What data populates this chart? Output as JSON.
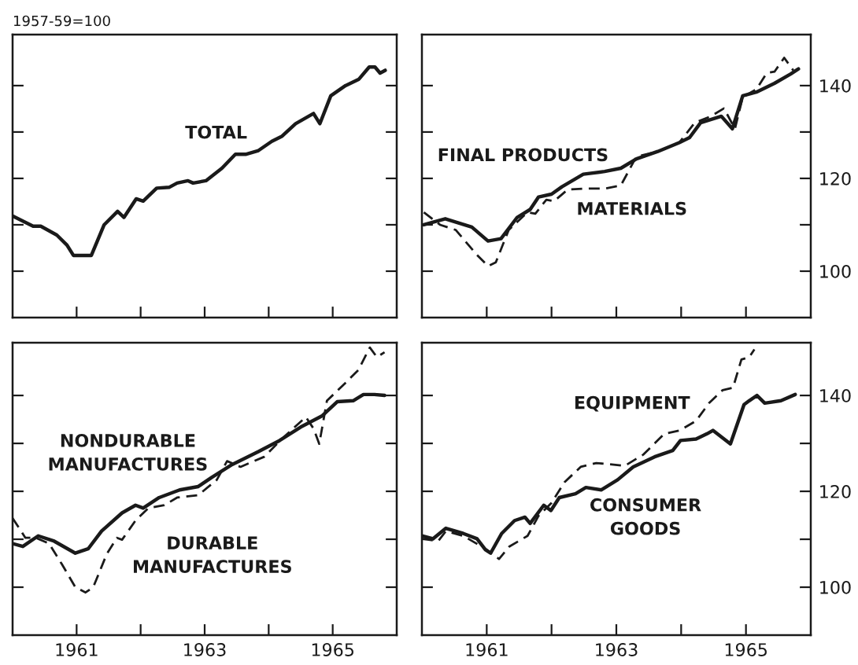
{
  "chart_data": [
    {
      "type": "line",
      "annotations": [
        "1957-59=100"
      ],
      "xlim": [
        1960,
        1966
      ],
      "ylim": [
        90,
        151
      ],
      "tick_labels": false,
      "xticks": [
        {
          "value": 1961,
          "label": null
        },
        {
          "value": 1962,
          "label": null
        },
        {
          "value": 1963,
          "label": null
        },
        {
          "value": 1964,
          "label": null
        },
        {
          "value": 1965,
          "label": null
        }
      ],
      "yticks": [
        {
          "value": 100,
          "label": null
        },
        {
          "value": 110,
          "label": null
        },
        {
          "value": 120,
          "label": null
        },
        {
          "value": 130,
          "label": null
        },
        {
          "value": 140,
          "label": null
        }
      ],
      "series": [
        {
          "name": "TOTAL",
          "color": "#1a1a1a",
          "line_style": "solid",
          "x": [
            1960.0,
            1960.32,
            1960.44,
            1960.69,
            1960.85,
            1960.95,
            1961.23,
            1961.43,
            1961.64,
            1961.74,
            1961.93,
            1962.04,
            1962.25,
            1962.45,
            1962.57,
            1962.74,
            1962.82,
            1963.02,
            1963.27,
            1963.48,
            1963.64,
            1963.84,
            1964.05,
            1964.21,
            1964.42,
            1964.7,
            1964.8,
            1964.97,
            1965.2,
            1965.41,
            1965.57,
            1965.66,
            1965.74,
            1965.82
          ],
          "values": [
            111.9,
            109.7,
            109.7,
            107.8,
            105.6,
            103.4,
            103.4,
            110,
            112.9,
            111.6,
            115.6,
            115.1,
            117.9,
            118.1,
            119,
            119.5,
            119,
            119.5,
            122.2,
            125.2,
            125.2,
            126,
            128,
            129.1,
            131.8,
            134,
            131.8,
            137.8,
            140,
            141.4,
            144,
            144,
            142.7,
            143.3
          ]
        }
      ]
    },
    {
      "type": "line",
      "xlim": [
        1960,
        1966
      ],
      "ylim": [
        90,
        151
      ],
      "tick_labels": "y",
      "xticks": [
        {
          "value": 1961,
          "label": null
        },
        {
          "value": 1962,
          "label": null
        },
        {
          "value": 1963,
          "label": null
        },
        {
          "value": 1964,
          "label": null
        },
        {
          "value": 1965,
          "label": null
        }
      ],
      "yticks": [
        100,
        {
          "value": 110,
          "label": null
        },
        120,
        {
          "value": 130,
          "label": null
        },
        140
      ],
      "series": [
        {
          "name": "FINAL PRODUCTS",
          "color": "#1a1a1a",
          "line_style": "solid",
          "x": [
            1960.03,
            1960.36,
            1960.77,
            1961.02,
            1961.22,
            1961.47,
            1961.67,
            1961.8,
            1962.0,
            1962.16,
            1962.49,
            1962.82,
            1963.07,
            1963.31,
            1963.64,
            1963.97,
            1964.13,
            1964.3,
            1964.62,
            1964.79,
            1964.95,
            1965.16,
            1965.44,
            1965.69,
            1965.81
          ],
          "values": [
            110,
            111.3,
            109.5,
            106.5,
            107,
            111.6,
            113.3,
            116,
            116.6,
            118.2,
            120.9,
            121.5,
            122.2,
            124.2,
            125.8,
            127.7,
            128.8,
            132,
            133.4,
            130.7,
            137.8,
            138.6,
            140.5,
            142.5,
            143.6
          ]
        },
        {
          "name": "MATERIALS",
          "color": "#1a1a1a",
          "line_style": "dashed",
          "x": [
            1960.03,
            1960.28,
            1960.52,
            1960.85,
            1961.02,
            1961.14,
            1961.34,
            1961.63,
            1961.75,
            1961.92,
            1962.04,
            1962.25,
            1962.49,
            1962.82,
            1963.07,
            1963.31,
            1963.64,
            1963.97,
            1964.21,
            1964.46,
            1964.66,
            1964.83,
            1964.95,
            1965.16,
            1965.32,
            1965.44,
            1965.59,
            1965.73
          ],
          "values": [
            112.7,
            110,
            108.9,
            103.5,
            101.1,
            101.9,
            108.9,
            112.7,
            112.4,
            115.4,
            115.1,
            117.6,
            117.8,
            117.8,
            118.5,
            124.7,
            125.8,
            127.7,
            132,
            133.4,
            135.1,
            130.7,
            137.5,
            139.2,
            142.7,
            143,
            146,
            143.3
          ]
        }
      ]
    },
    {
      "type": "line",
      "xlim": [
        1960,
        1966
      ],
      "ylim": [
        90,
        151
      ],
      "tick_labels": "x",
      "xticks": [
        {
          "value": 1961,
          "label": "1961"
        },
        {
          "value": 1962,
          "label": null
        },
        {
          "value": 1963,
          "label": "1963"
        },
        {
          "value": 1964,
          "label": null
        },
        {
          "value": 1965,
          "label": "1965"
        }
      ],
      "yticks": [
        {
          "value": 100,
          "label": null
        },
        {
          "value": 110,
          "label": null
        },
        {
          "value": 120,
          "label": null
        },
        {
          "value": 130,
          "label": null
        },
        {
          "value": 140,
          "label": null
        }
      ],
      "series": [
        {
          "name": "NONDURABLE\nMANUFACTURES",
          "color": "#1a1a1a",
          "line_style": "solid",
          "x": [
            1960.0,
            1960.16,
            1960.4,
            1960.65,
            1960.98,
            1961.18,
            1961.39,
            1961.71,
            1961.92,
            1962.04,
            1962.29,
            1962.61,
            1962.9,
            1963.11,
            1963.43,
            1963.84,
            1964.17,
            1964.5,
            1964.83,
            1965.07,
            1965.32,
            1965.48,
            1965.65,
            1965.81
          ],
          "values": [
            109.1,
            108.5,
            110.7,
            109.6,
            107.1,
            108,
            111.7,
            115.5,
            117.1,
            116.5,
            118.7,
            120.3,
            121,
            122.9,
            125.6,
            128.3,
            130.6,
            133.4,
            135.7,
            138.7,
            138.9,
            140.2,
            140.2,
            140
          ]
        },
        {
          "name": "DURABLE\nMANUFACTURES",
          "color": "#1a1a1a",
          "line_style": "dashed",
          "x": [
            1960.0,
            1960.2,
            1960.36,
            1960.57,
            1960.77,
            1960.98,
            1961.14,
            1961.26,
            1961.47,
            1961.63,
            1961.71,
            1961.92,
            1962.12,
            1962.37,
            1962.57,
            1962.9,
            1963.19,
            1963.35,
            1963.56,
            1963.93,
            1964.25,
            1964.58,
            1964.7,
            1964.79,
            1964.91,
            1965.16,
            1965.4,
            1965.58,
            1965.69,
            1965.81
          ],
          "values": [
            114.4,
            110.3,
            110.3,
            109.1,
            104.8,
            100,
            98.9,
            100,
            106.9,
            110.3,
            109.9,
            113.9,
            116.5,
            117.1,
            118.7,
            119.2,
            122.4,
            126.3,
            125.1,
            127.2,
            131.5,
            135.5,
            133.1,
            129.9,
            138.9,
            142.1,
            145.3,
            150,
            148,
            149
          ]
        }
      ]
    },
    {
      "type": "line",
      "xlim": [
        1960,
        1966
      ],
      "ylim": [
        90,
        151
      ],
      "xticks": [
        {
          "value": 1961,
          "label": "1961"
        },
        {
          "value": 1962,
          "label": null
        },
        {
          "value": 1963,
          "label": "1963"
        },
        {
          "value": 1964,
          "label": null
        },
        {
          "value": 1965,
          "label": "1965"
        }
      ],
      "yticks": [
        100,
        {
          "value": 110,
          "label": null
        },
        120,
        {
          "value": 130,
          "label": null
        },
        140
      ],
      "series": [
        {
          "name": "CONSUMER\nGOODS",
          "color": "#1a1a1a",
          "line_style": "solid",
          "x": [
            1960.0,
            1960.17,
            1960.37,
            1960.64,
            1960.85,
            1960.98,
            1961.06,
            1961.23,
            1961.43,
            1961.59,
            1961.67,
            1961.88,
            1961.99,
            1962.12,
            1962.37,
            1962.53,
            1962.77,
            1963.02,
            1963.26,
            1963.59,
            1963.87,
            1963.99,
            1964.23,
            1964.4,
            1964.49,
            1964.76,
            1964.97,
            1965.05,
            1965.17,
            1965.29,
            1965.54,
            1965.76
          ],
          "values": [
            110.7,
            110.1,
            112.3,
            111.2,
            110.1,
            107.8,
            107.1,
            111.2,
            113.9,
            114.6,
            113.3,
            117.1,
            116,
            118.7,
            119.5,
            120.8,
            120.3,
            122.4,
            125.1,
            127.2,
            128.5,
            130.6,
            130.9,
            132,
            132.7,
            129.9,
            138.1,
            138.9,
            140,
            138.4,
            138.9,
            140.2
          ]
        },
        {
          "name": "EQUIPMENT",
          "color": "#1a1a1a",
          "line_style": "dashed",
          "x": [
            1960.0,
            1960.25,
            1960.37,
            1960.64,
            1960.98,
            1961.19,
            1961.35,
            1961.63,
            1961.8,
            1962.0,
            1962.2,
            1962.45,
            1962.69,
            1962.93,
            1963.13,
            1963.42,
            1963.74,
            1963.98,
            1964.23,
            1964.43,
            1964.64,
            1964.8,
            1964.93,
            1965.05,
            1965.13
          ],
          "values": [
            110.1,
            109.6,
            111.7,
            110.7,
            108,
            105.9,
            108.5,
            110.7,
            114.9,
            117.6,
            121.9,
            125.1,
            125.9,
            125.6,
            125.3,
            127.7,
            132,
            132.7,
            134.7,
            138.4,
            141.1,
            141.6,
            147.5,
            148,
            149.6
          ]
        }
      ]
    }
  ]
}
